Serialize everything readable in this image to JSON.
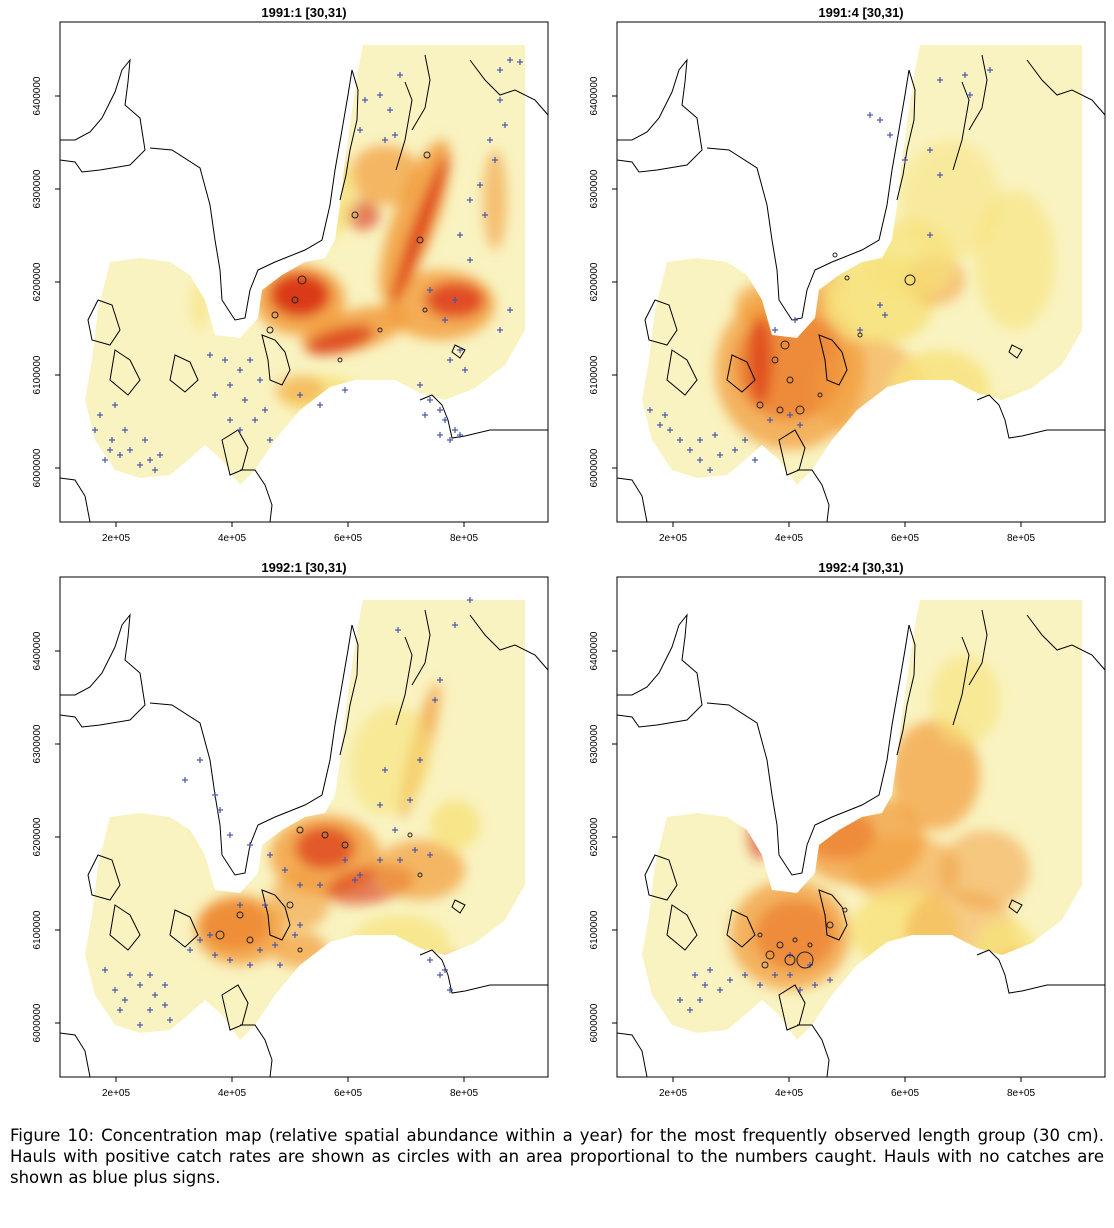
{
  "panels": [
    {
      "title": "1991:1 [30,31)"
    },
    {
      "title": "1991:4 [30,31)"
    },
    {
      "title": "1992:1 [30,31)"
    },
    {
      "title": "1992:4 [30,31)"
    }
  ],
  "axes": {
    "x_ticks": [
      "2e+05",
      "4e+05",
      "6e+05",
      "8e+05"
    ],
    "y_ticks": [
      "6000000",
      "6100000",
      "6200000",
      "6300000",
      "6400000"
    ]
  },
  "caption": "Figure 10: Concentration map (relative spatial abundance within a year) for the most frequently observed length group (30 cm). Hauls with positive catch rates are shown as circles with an area proportional to the numbers caught. Hauls with no catches are shown as blue plus signs.",
  "colors": {
    "background": "#f9f3c1",
    "low": "#f7e27a",
    "mid": "#f29c3c",
    "high": "#d92d12",
    "plus": "#4a56a8"
  }
}
